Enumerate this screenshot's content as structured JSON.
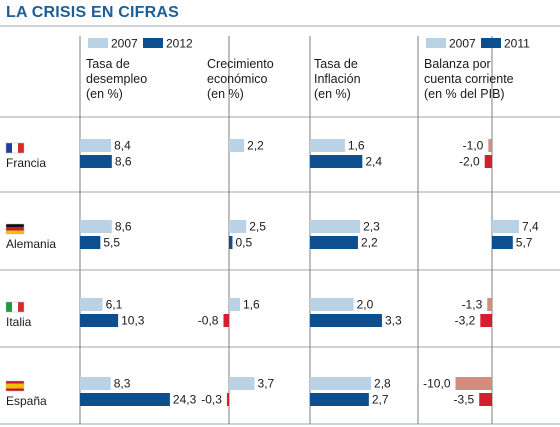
{
  "title": "LA CRISIS EN CIFRAS",
  "colors": {
    "title": "#1c5f98",
    "bar_prev": "#b9d2e6",
    "bar_curr": "#0d4f8e",
    "neg_prev": "#d48c80",
    "neg_curr": "#d41d2d",
    "rule": "#9aa8b6"
  },
  "legends": [
    {
      "items": [
        "2007",
        "2012"
      ]
    },
    {
      "items": [
        "2007",
        "2011"
      ]
    }
  ],
  "countries": [
    {
      "name": "Francia",
      "flag": "flag-france-icon"
    },
    {
      "name": "Alemania",
      "flag": "flag-germany-icon"
    },
    {
      "name": "Italia",
      "flag": "flag-italy-icon"
    },
    {
      "name": "España",
      "flag": "flag-spain-icon"
    }
  ],
  "chart_data": {
    "type": "bar",
    "title": "LA CRISIS EN CIFRAS",
    "categories": [
      "Francia",
      "Alemania",
      "Italia",
      "España"
    ],
    "panels": [
      {
        "header": [
          "Tasa de",
          "desempleo",
          "(en %)"
        ],
        "series": [
          {
            "name": "2007",
            "values": [
              8.4,
              8.6,
              6.1,
              8.3
            ],
            "labels": [
              "8,4",
              "8,6",
              "6,1",
              "8,3"
            ]
          },
          {
            "name": "2012",
            "values": [
              8.6,
              5.5,
              10.3,
              24.3
            ],
            "labels": [
              "8,6",
              "5,5",
              "10,3",
              "24,3"
            ]
          }
        ]
      },
      {
        "header": [
          "Crecimiento",
          "económico",
          "(en %)"
        ],
        "series": [
          {
            "name": "2007",
            "values": [
              2.2,
              2.5,
              1.6,
              3.7
            ],
            "labels": [
              "2,2",
              "2,5",
              "1,6",
              "3,7"
            ]
          },
          {
            "name": "2012",
            "values": [
              null,
              0.5,
              -0.8,
              -0.3
            ],
            "labels": [
              null,
              "0,5",
              "-0,8",
              "-0,3"
            ]
          }
        ]
      },
      {
        "header": [
          "Tasa de",
          "Inflación",
          "(en %)"
        ],
        "series": [
          {
            "name": "2007",
            "values": [
              1.6,
              2.3,
              2.0,
              2.8
            ],
            "labels": [
              "1,6",
              "2,3",
              "2,0",
              "2,8"
            ]
          },
          {
            "name": "2012",
            "values": [
              2.4,
              2.2,
              3.3,
              2.7
            ],
            "labels": [
              "2,4",
              "2,2",
              "3,3",
              "2,7"
            ]
          }
        ]
      },
      {
        "header": [
          "Balanza por",
          "cuenta corriente",
          "(en % del PIB)"
        ],
        "series": [
          {
            "name": "2007",
            "values": [
              -1.0,
              7.4,
              -1.3,
              -10.0
            ],
            "labels": [
              "-1,0",
              "7,4",
              "-1,3",
              "-10,0"
            ]
          },
          {
            "name": "2011",
            "values": [
              -2.0,
              5.7,
              -3.2,
              -3.5
            ],
            "labels": [
              "-2,0",
              "5,7",
              "-3,2",
              "-3,5"
            ]
          }
        ]
      }
    ]
  }
}
